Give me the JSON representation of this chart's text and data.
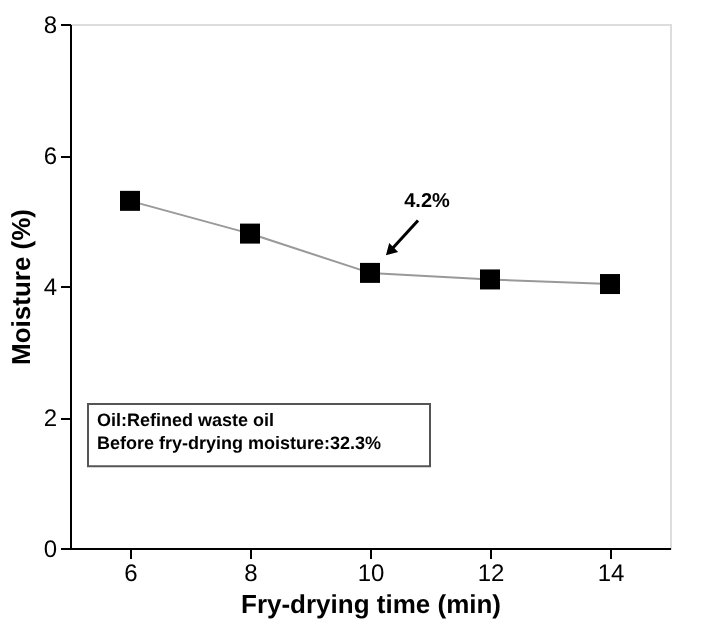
{
  "chart_data": {
    "type": "line",
    "xlabel": "Fry-drying time (min)",
    "ylabel": "Moisture (%)",
    "x": [
      6,
      8,
      10,
      12,
      14
    ],
    "series": [
      {
        "color": "#000000",
        "values": [
          5.3,
          4.8,
          4.2,
          4.1,
          4.03
        ]
      }
    ],
    "xlim": [
      5,
      15
    ],
    "xticks": [
      6,
      8,
      10,
      12,
      14
    ],
    "ylim": [
      0,
      8
    ],
    "yticks": [
      0,
      2,
      4,
      6,
      8
    ],
    "marker": "square",
    "line_style": "solid",
    "grid": false,
    "annotations": [
      "4.2%",
      "Oil:Refined waste oil",
      "Before fry-drying moisture:32.3%"
    ]
  }
}
